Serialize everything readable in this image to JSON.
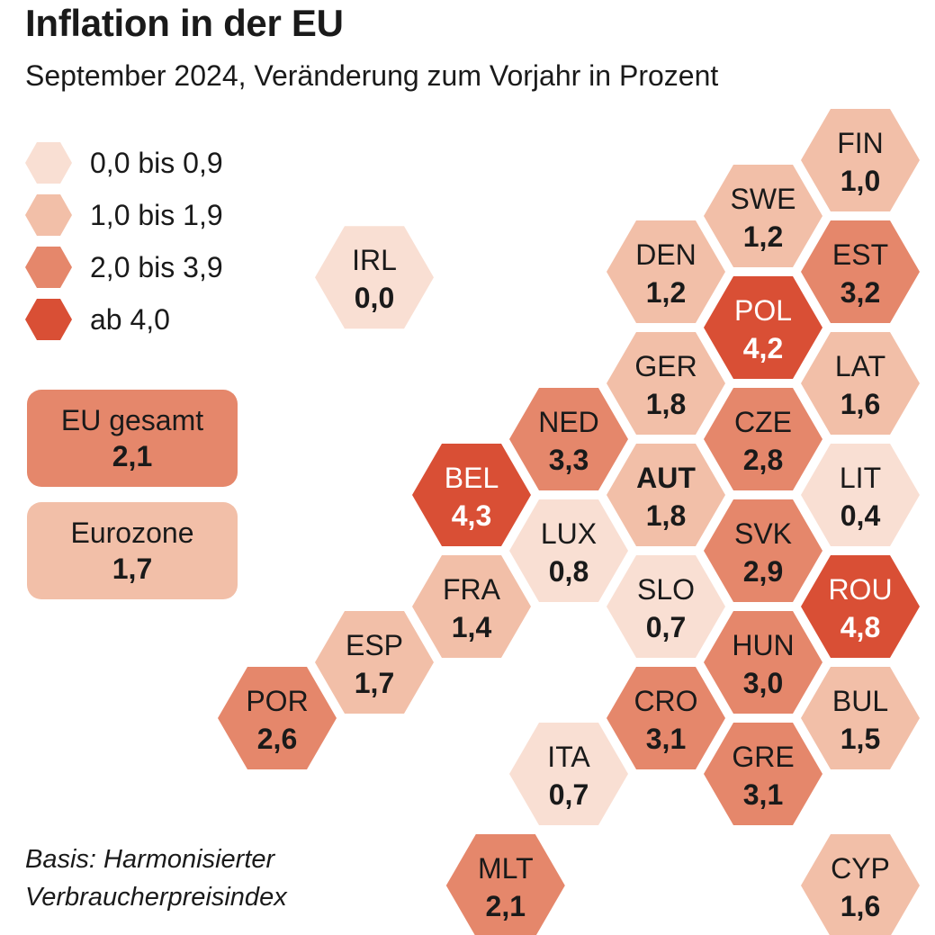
{
  "header": {
    "title": "Inflation in der EU",
    "subtitle": "September 2024, Veränderung zum Vorjahr in Prozent"
  },
  "summary": {
    "eu": {
      "label": "EU gesamt",
      "value": "2,1"
    },
    "eurozone": {
      "label": "Eurozone",
      "value": "1,7"
    }
  },
  "footnote": {
    "line1": "Basis: Harmonisierter",
    "line2": "Verbraucherpreisindex"
  },
  "chart_data": {
    "type": "heatmap",
    "title": "Inflation in der EU",
    "subtitle": "September 2024, Veränderung zum Vorjahr in Prozent",
    "unit": "%",
    "legend": [
      {
        "label": "0,0 bis 0,9",
        "min": 0.0,
        "max": 0.9,
        "color": "#f9dfd3"
      },
      {
        "label": "1,0 bis 1,9",
        "min": 1.0,
        "max": 1.9,
        "color": "#f2bfa8"
      },
      {
        "label": "2,0 bis 3,9",
        "min": 2.0,
        "max": 3.9,
        "color": "#e5876b"
      },
      {
        "label": "ab 4,0",
        "min": 4.0,
        "max": null,
        "color": "#d94f35"
      }
    ],
    "legend_placement": "top-left",
    "countries": [
      {
        "code": "FIN",
        "value": 1.0,
        "label": "1,0",
        "col": 6,
        "row": 0
      },
      {
        "code": "SWE",
        "value": 1.2,
        "label": "1,2",
        "col": 5,
        "row": 1
      },
      {
        "code": "DEN",
        "value": 1.2,
        "label": "1,2",
        "col": 4,
        "row": 2
      },
      {
        "code": "EST",
        "value": 3.2,
        "label": "3,2",
        "col": 6,
        "row": 2
      },
      {
        "code": "IRL",
        "value": 0.0,
        "label": "0,0",
        "col": 1,
        "row": 2.1
      },
      {
        "code": "POL",
        "value": 4.2,
        "label": "4,2",
        "col": 5,
        "row": 3
      },
      {
        "code": "GER",
        "value": 1.8,
        "label": "1,8",
        "col": 4,
        "row": 4
      },
      {
        "code": "LAT",
        "value": 1.6,
        "label": "1,6",
        "col": 6,
        "row": 4
      },
      {
        "code": "NED",
        "value": 3.3,
        "label": "3,3",
        "col": 3,
        "row": 5
      },
      {
        "code": "CZE",
        "value": 2.8,
        "label": "2,8",
        "col": 5,
        "row": 5
      },
      {
        "code": "BEL",
        "value": 4.3,
        "label": "4,3",
        "col": 2,
        "row": 6
      },
      {
        "code": "AUT",
        "value": 1.8,
        "label": "1,8",
        "col": 4,
        "row": 6,
        "bold": true
      },
      {
        "code": "LIT",
        "value": 0.4,
        "label": "0,4",
        "col": 6,
        "row": 6
      },
      {
        "code": "LUX",
        "value": 0.8,
        "label": "0,8",
        "col": 3,
        "row": 7
      },
      {
        "code": "SVK",
        "value": 2.9,
        "label": "2,9",
        "col": 5,
        "row": 7
      },
      {
        "code": "FRA",
        "value": 1.4,
        "label": "1,4",
        "col": 2,
        "row": 8
      },
      {
        "code": "SLO",
        "value": 0.7,
        "label": "0,7",
        "col": 4,
        "row": 8
      },
      {
        "code": "ROU",
        "value": 4.8,
        "label": "4,8",
        "col": 6,
        "row": 8
      },
      {
        "code": "ESP",
        "value": 1.7,
        "label": "1,7",
        "col": 1,
        "row": 9
      },
      {
        "code": "HUN",
        "value": 3.0,
        "label": "3,0",
        "col": 5,
        "row": 9
      },
      {
        "code": "POR",
        "value": 2.6,
        "label": "2,6",
        "col": 0,
        "row": 10
      },
      {
        "code": "CRO",
        "value": 3.1,
        "label": "3,1",
        "col": 4,
        "row": 10
      },
      {
        "code": "BUL",
        "value": 1.5,
        "label": "1,5",
        "col": 6,
        "row": 10
      },
      {
        "code": "ITA",
        "value": 0.7,
        "label": "0,7",
        "col": 3,
        "row": 11
      },
      {
        "code": "GRE",
        "value": 3.1,
        "label": "3,1",
        "col": 5,
        "row": 11
      },
      {
        "code": "MLT",
        "value": 2.1,
        "label": "2,1",
        "col": 2.35,
        "row": 13
      },
      {
        "code": "CYP",
        "value": 1.6,
        "label": "1,6",
        "col": 6,
        "row": 13
      }
    ]
  }
}
